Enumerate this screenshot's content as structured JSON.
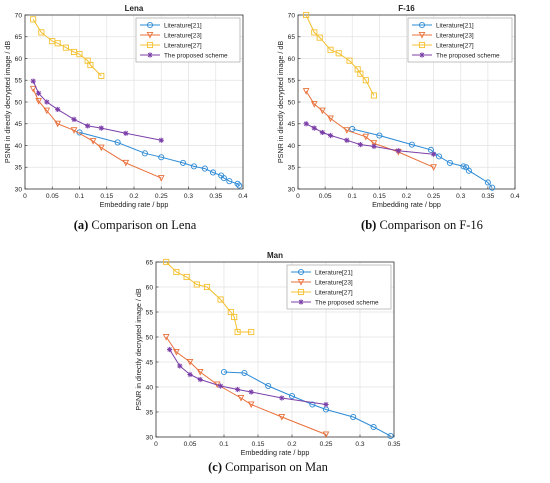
{
  "chart_data": [
    {
      "type": "line",
      "title": "Lena",
      "xlabel": "Embedding rate / bpp",
      "ylabel": "PSNR in directly decrypted image / dB",
      "xlim": [
        0,
        0.4
      ],
      "ylim": [
        30,
        70
      ],
      "xticks": [
        0,
        0.05,
        0.1,
        0.15,
        0.2,
        0.25,
        0.3,
        0.35,
        0.4
      ],
      "yticks": [
        30,
        35,
        40,
        45,
        50,
        55,
        60,
        65,
        70
      ],
      "grid": true,
      "legend": "top-right",
      "caption_tag": "(a)",
      "caption": "Comparison on Lena",
      "series": [
        {
          "name": "Literature[21]",
          "color": "#2e8bd6",
          "marker": "circle",
          "points": [
            [
              0.1,
              43
            ],
            [
              0.17,
              40.7
            ],
            [
              0.22,
              38.2
            ],
            [
              0.25,
              37.3
            ],
            [
              0.29,
              36
            ],
            [
              0.31,
              35.2
            ],
            [
              0.33,
              34.7
            ],
            [
              0.345,
              33.8
            ],
            [
              0.36,
              33.1
            ],
            [
              0.365,
              32.5
            ],
            [
              0.375,
              31.8
            ],
            [
              0.39,
              31.2
            ],
            [
              0.393,
              30.8
            ]
          ]
        },
        {
          "name": "Literature[23]",
          "color": "#e8703a",
          "marker": "triangle-down",
          "points": [
            [
              0.015,
              53
            ],
            [
              0.025,
              50.2
            ],
            [
              0.04,
              48
            ],
            [
              0.06,
              45
            ],
            [
              0.09,
              43.5
            ],
            [
              0.125,
              41
            ],
            [
              0.14,
              39.5
            ],
            [
              0.185,
              36
            ],
            [
              0.25,
              32.5
            ]
          ]
        },
        {
          "name": "Literature[27]",
          "color": "#f4c030",
          "marker": "square",
          "points": [
            [
              0.015,
              69
            ],
            [
              0.03,
              66
            ],
            [
              0.05,
              64
            ],
            [
              0.06,
              63.5
            ],
            [
              0.075,
              62.5
            ],
            [
              0.09,
              61.5
            ],
            [
              0.1,
              61
            ],
            [
              0.115,
              59.5
            ],
            [
              0.12,
              58.5
            ],
            [
              0.14,
              56
            ]
          ]
        },
        {
          "name": "The proposed scheme",
          "color": "#7b3fa8",
          "marker": "star",
          "points": [
            [
              0.015,
              54.8
            ],
            [
              0.025,
              52
            ],
            [
              0.04,
              50
            ],
            [
              0.06,
              48.3
            ],
            [
              0.09,
              46
            ],
            [
              0.115,
              44.5
            ],
            [
              0.14,
              44
            ],
            [
              0.185,
              42.8
            ],
            [
              0.25,
              41.2
            ]
          ]
        }
      ]
    },
    {
      "type": "line",
      "title": "F-16",
      "xlabel": "Embedding rate / bpp",
      "ylabel": "PSNR in directly decrypted image / dB",
      "xlim": [
        0,
        0.4
      ],
      "ylim": [
        30,
        70
      ],
      "xticks": [
        0,
        0.05,
        0.1,
        0.15,
        0.2,
        0.25,
        0.3,
        0.35,
        0.4
      ],
      "yticks": [
        30,
        35,
        40,
        45,
        50,
        55,
        60,
        65,
        70
      ],
      "grid": true,
      "legend": "top-right",
      "caption_tag": "(b)",
      "caption": "Comparison on F-16",
      "series": [
        {
          "name": "Literature[21]",
          "color": "#2e8bd6",
          "marker": "circle",
          "points": [
            [
              0.1,
              43.8
            ],
            [
              0.15,
              42.3
            ],
            [
              0.21,
              40.2
            ],
            [
              0.245,
              39
            ],
            [
              0.26,
              37.5
            ],
            [
              0.28,
              36
            ],
            [
              0.305,
              35.2
            ],
            [
              0.31,
              35
            ],
            [
              0.315,
              34.2
            ],
            [
              0.35,
              31.5
            ],
            [
              0.358,
              30.3
            ]
          ]
        },
        {
          "name": "Literature[23]",
          "color": "#e8703a",
          "marker": "triangle-down",
          "points": [
            [
              0.015,
              52.5
            ],
            [
              0.03,
              49.5
            ],
            [
              0.045,
              48
            ],
            [
              0.06,
              46.2
            ],
            [
              0.09,
              43.5
            ],
            [
              0.125,
              42
            ],
            [
              0.14,
              40.5
            ],
            [
              0.185,
              38.5
            ],
            [
              0.25,
              35
            ]
          ]
        },
        {
          "name": "Literature[27]",
          "color": "#f4c030",
          "marker": "square",
          "points": [
            [
              0.015,
              70
            ],
            [
              0.03,
              66
            ],
            [
              0.04,
              64.8
            ],
            [
              0.06,
              62
            ],
            [
              0.075,
              61.2
            ],
            [
              0.095,
              59.5
            ],
            [
              0.11,
              57.5
            ],
            [
              0.115,
              56.5
            ],
            [
              0.125,
              55
            ],
            [
              0.14,
              51.5
            ]
          ]
        },
        {
          "name": "The proposed scheme",
          "color": "#7b3fa8",
          "marker": "star",
          "points": [
            [
              0.015,
              45
            ],
            [
              0.03,
              44
            ],
            [
              0.045,
              43
            ],
            [
              0.06,
              42.3
            ],
            [
              0.09,
              41.2
            ],
            [
              0.115,
              40.2
            ],
            [
              0.14,
              39.8
            ],
            [
              0.185,
              38.8
            ],
            [
              0.25,
              38
            ]
          ]
        }
      ]
    },
    {
      "type": "line",
      "title": "Man",
      "xlabel": "Embedding rate / bpp",
      "ylabel": "PSNR in directly decrypted image / dB",
      "xlim": [
        0,
        0.35
      ],
      "ylim": [
        30,
        65
      ],
      "xticks": [
        0,
        0.05,
        0.1,
        0.15,
        0.2,
        0.25,
        0.3,
        0.35
      ],
      "yticks": [
        30,
        35,
        40,
        45,
        50,
        55,
        60,
        65
      ],
      "grid": true,
      "legend": "top-right",
      "caption_tag": "(c)",
      "caption": "Comparison on Man",
      "series": [
        {
          "name": "Literature[21]",
          "color": "#2e8bd6",
          "marker": "circle",
          "points": [
            [
              0.1,
              43
            ],
            [
              0.13,
              42.8
            ],
            [
              0.165,
              40.2
            ],
            [
              0.2,
              38.2
            ],
            [
              0.23,
              36.5
            ],
            [
              0.25,
              35.5
            ],
            [
              0.29,
              34
            ],
            [
              0.32,
              32
            ],
            [
              0.345,
              30.2
            ]
          ]
        },
        {
          "name": "Literature[23]",
          "color": "#e8703a",
          "marker": "triangle-down",
          "points": [
            [
              0.015,
              50
            ],
            [
              0.03,
              47
            ],
            [
              0.05,
              45
            ],
            [
              0.065,
              43
            ],
            [
              0.09,
              40.5
            ],
            [
              0.125,
              37.8
            ],
            [
              0.14,
              36.5
            ],
            [
              0.185,
              34
            ],
            [
              0.25,
              30.5
            ]
          ]
        },
        {
          "name": "Literature[27]",
          "color": "#f4c030",
          "marker": "square",
          "points": [
            [
              0.015,
              65
            ],
            [
              0.03,
              63
            ],
            [
              0.045,
              62
            ],
            [
              0.06,
              60.5
            ],
            [
              0.075,
              60
            ],
            [
              0.095,
              57.5
            ],
            [
              0.11,
              55
            ],
            [
              0.115,
              54
            ],
            [
              0.12,
              51
            ],
            [
              0.14,
              51
            ]
          ]
        },
        {
          "name": "The proposed scheme",
          "color": "#7b3fa8",
          "marker": "star",
          "points": [
            [
              0.02,
              47.5
            ],
            [
              0.035,
              44.2
            ],
            [
              0.05,
              42.5
            ],
            [
              0.065,
              41.5
            ],
            [
              0.095,
              40.2
            ],
            [
              0.12,
              39.5
            ],
            [
              0.14,
              39
            ],
            [
              0.185,
              37.8
            ],
            [
              0.25,
              36.5
            ]
          ]
        }
      ]
    }
  ]
}
